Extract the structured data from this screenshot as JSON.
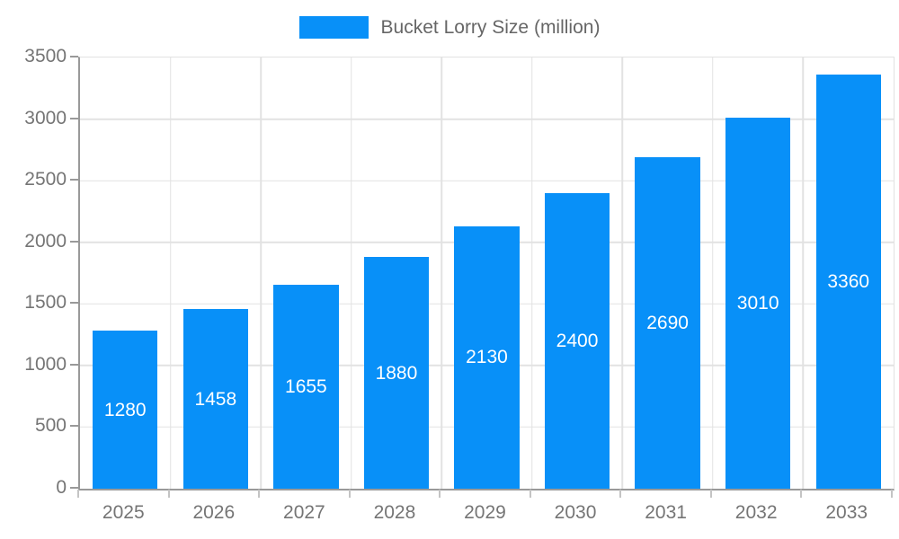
{
  "legend": {
    "label": "Bucket Lorry Size (million)",
    "swatch_color": "#0890f8"
  },
  "chart_data": {
    "type": "bar",
    "title": "",
    "xlabel": "",
    "ylabel": "",
    "categories": [
      "2025",
      "2026",
      "2027",
      "2028",
      "2029",
      "2030",
      "2031",
      "2032",
      "2033"
    ],
    "series": [
      {
        "name": "Bucket Lorry Size (million)",
        "values": [
          1280,
          1458,
          1655,
          1880,
          2130,
          2400,
          2690,
          3010,
          3360
        ]
      }
    ],
    "value_labels_shown": true,
    "ylim": [
      0,
      3500
    ],
    "yticks": [
      0,
      500,
      1000,
      1500,
      2000,
      2500,
      3000,
      3500
    ],
    "grid": true,
    "legend_position": "top"
  },
  "colors": {
    "bar": "#0890f8",
    "value_label": "#ffffff",
    "gridline": "#e2e2e2",
    "axis_line": "#999999",
    "axis_tick_label": "#757575",
    "legend_text": "#666666",
    "background": "#ffffff"
  }
}
